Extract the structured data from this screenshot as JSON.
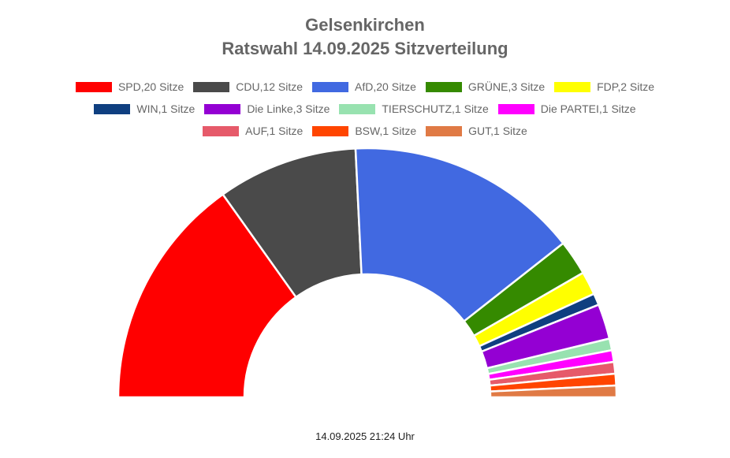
{
  "chart_data": {
    "type": "pie",
    "subtype": "semicircle",
    "title": "Gelsenkirchen",
    "subtitle": "Ratswahl 14.09.2025 Sitzverteilung",
    "legend_position": "top",
    "series": [
      {
        "name": "SPD",
        "label": "SPD,20 Sitze",
        "value": 20,
        "color": "#FF0000"
      },
      {
        "name": "CDU",
        "label": "CDU,12 Sitze",
        "value": 12,
        "color": "#4A4A4A"
      },
      {
        "name": "AfD",
        "label": "AfD,20 Sitze",
        "value": 20,
        "color": "#4169E1"
      },
      {
        "name": "GRÜNE",
        "label": "GRÜNE,3 Sitze",
        "value": 3,
        "color": "#358A00"
      },
      {
        "name": "FDP",
        "label": "FDP,2 Sitze",
        "value": 2,
        "color": "#FFFF00"
      },
      {
        "name": "WIN",
        "label": "WIN,1 Sitze",
        "value": 1,
        "color": "#0F3F80"
      },
      {
        "name": "Die Linke",
        "label": "Die Linke,3 Sitze",
        "value": 3,
        "color": "#9400D3"
      },
      {
        "name": "TIERSCHUTZ",
        "label": "TIERSCHUTZ,1 Sitze",
        "value": 1,
        "color": "#98E2B0"
      },
      {
        "name": "Die PARTEI",
        "label": "Die PARTEI,1 Sitze",
        "value": 1,
        "color": "#FF00FF"
      },
      {
        "name": "AUF",
        "label": "AUF,1 Sitze",
        "value": 1,
        "color": "#E65A6A"
      },
      {
        "name": "BSW",
        "label": "BSW,1 Sitze",
        "value": 1,
        "color": "#FF4500"
      },
      {
        "name": "GUT",
        "label": "GUT,1 Sitze",
        "value": 1,
        "color": "#E07A45"
      }
    ]
  },
  "footer": {
    "timestamp": "14.09.2025 21:24 Uhr"
  }
}
